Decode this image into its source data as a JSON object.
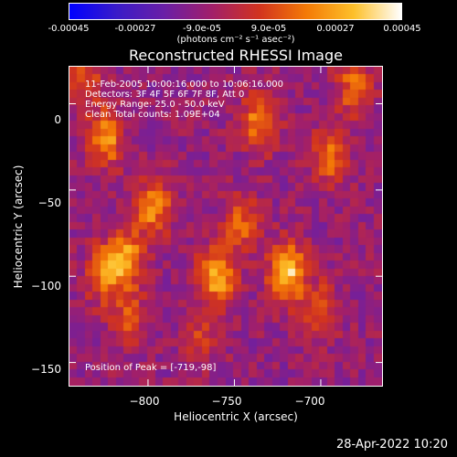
{
  "colorbar": {
    "tick_labels": [
      "-0.00045",
      "-0.00027",
      "-9.0e-05",
      "9.0e-05",
      "0.00027",
      "0.00045"
    ],
    "unit_label": "(photons cm⁻² s⁻¹ asec⁻²)",
    "range": [
      -0.00045,
      0.00045
    ],
    "colormap": [
      "#0000ff",
      "#3a1bc8",
      "#6a1fa6",
      "#a11f6a",
      "#d1331f",
      "#f47a06",
      "#fdc02a",
      "#ffffff"
    ]
  },
  "title": "Reconstructed RHESSI Image",
  "info": {
    "time": "11-Feb-2005 10:00:16.000 to 10:06:16.000",
    "detectors": "Detectors: 3F 4F 5F 6F 7F 8F, Att 0",
    "energy": "Energy Range: 25.0 - 50.0 keV",
    "clean": "Clean    Total counts: 1.09E+04",
    "peak": "Position of Peak = [-719,-98]"
  },
  "chart_data": {
    "type": "heatmap",
    "title": "Reconstructed RHESSI Image",
    "xlabel": "Heliocentric X (arcsec)",
    "ylabel": "Heliocentric Y (arcsec)",
    "xlim": [
      -846,
      -664
    ],
    "ylim": [
      -164,
      22
    ],
    "x_ticks": [
      -800,
      -750,
      -700
    ],
    "x_tick_labels": [
      "−800",
      "−750",
      "−700"
    ],
    "y_ticks": [
      0,
      -50,
      -100,
      -150
    ],
    "y_tick_labels": [
      "0",
      "−50",
      "−100",
      "−150"
    ],
    "peak": [
      -719,
      -98
    ],
    "sources": [
      {
        "x": -719,
        "y": -98,
        "intensity": 1.0
      },
      {
        "x": -760,
        "y": -100,
        "intensity": 0.85
      },
      {
        "x": -813,
        "y": -90,
        "intensity": 0.8
      },
      {
        "x": -797,
        "y": -60,
        "intensity": 0.7
      },
      {
        "x": -825,
        "y": -20,
        "intensity": 0.75
      },
      {
        "x": -735,
        "y": -10,
        "intensity": 0.65
      },
      {
        "x": -694,
        "y": -30,
        "intensity": 0.6
      },
      {
        "x": -680,
        "y": 10,
        "intensity": 0.55
      },
      {
        "x": -826,
        "y": -100,
        "intensity": 0.6
      },
      {
        "x": -745,
        "y": -70,
        "intensity": 0.5
      },
      {
        "x": -700,
        "y": -120,
        "intensity": 0.45
      },
      {
        "x": -838,
        "y": 15,
        "intensity": 0.5
      },
      {
        "x": -768,
        "y": -135,
        "intensity": 0.35
      },
      {
        "x": -810,
        "y": -125,
        "intensity": 0.4
      }
    ],
    "background_level": -0.2
  },
  "axes": {
    "xlabel": "Heliocentric X (arcsec)",
    "ylabel": "Heliocentric Y (arcsec)"
  },
  "timestamp": "28-Apr-2022 10:20"
}
